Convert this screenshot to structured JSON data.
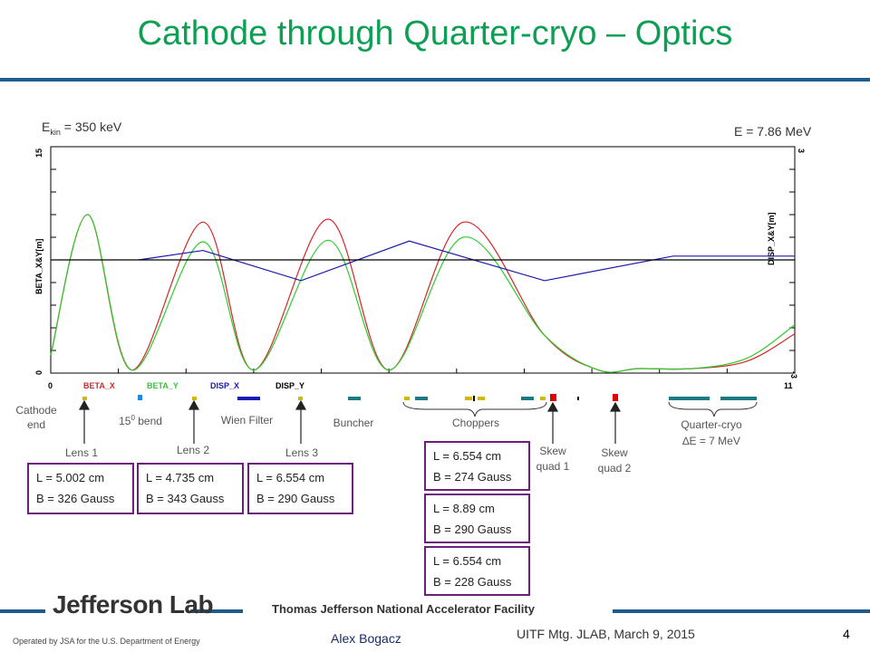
{
  "slide": {
    "title": "Cathode through Quarter-cryo – Optics",
    "ekin_label": "E",
    "ekin_sub": "kin",
    "ekin_value": " = 350 keV",
    "e_final": "E = 7.86 MeV",
    "page_number": "4"
  },
  "annotations": {
    "cathode": [
      "Cathode",
      "end"
    ],
    "bend_prefix": "15",
    "bend_sup": "0",
    "bend_suffix": " bend",
    "wien": "Wien Filter",
    "buncher": "Buncher",
    "choppers": "Choppers",
    "skew1": [
      "Skew",
      "quad 1"
    ],
    "skew2": [
      "Skew",
      "quad 2"
    ],
    "quarter_cryo": [
      "Quarter-cryo",
      "∆E = 7 MeV"
    ],
    "lens1": "Lens 1",
    "lens2": "Lens 2",
    "lens3": "Lens 3"
  },
  "boxes": {
    "lens1": [
      "L = 5.002 cm",
      "B = 326 Gauss"
    ],
    "lens2": [
      "L = 4.735 cm",
      "B = 343 Gauss"
    ],
    "lens3": [
      "L = 6.554 cm",
      "B = 290 Gauss"
    ],
    "chop1": [
      "L = 6.554 cm",
      "B = 274 Gauss"
    ],
    "chop2": [
      "L = 8.89 cm",
      "B = 290 Gauss"
    ],
    "chop3": [
      "L = 6.554 cm",
      "B = 228 Gauss"
    ]
  },
  "footer": {
    "logo": "Jefferson Lab",
    "facility": "Thomas Jefferson National Accelerator Facility",
    "operated": "Operated by JSA for the U.S. Department of Energy",
    "author": "Alex Bogacz",
    "meeting": "UITF Mtg. JLAB, March 9, 2015"
  },
  "chart_data": {
    "type": "line",
    "ylabel_left": "BETA_X&Y[m]",
    "ylabel_right": "DISP_X&Y[m]",
    "xlim": [
      0,
      11
    ],
    "ylim_left": [
      0,
      15
    ],
    "ylim_right": [
      -3,
      3
    ],
    "x_ticks": [
      "0",
      "11"
    ],
    "y_left_ticks": [
      "0",
      "15"
    ],
    "y_right_ticks": [
      "-3",
      "3"
    ],
    "legend": [
      "BETA_X",
      "BETA_Y",
      "DISP_X",
      "DISP_Y"
    ],
    "colors": {
      "BETA_X": "#d62728",
      "BETA_Y": "#2ecc2e",
      "DISP_X": "#1a1aa8",
      "DISP_Y": "#000000"
    },
    "series": [
      {
        "name": "BETA_X",
        "x": [
          0,
          0.55,
          1.2,
          2.25,
          3.0,
          4.1,
          5.0,
          6.1,
          7.3,
          8.1,
          8.7,
          9.5,
          10.3,
          11.0
        ],
        "y": [
          1.2,
          10.5,
          0.2,
          10.0,
          0.2,
          10.2,
          0.2,
          10.0,
          2.5,
          0.2,
          0.3,
          0.3,
          0.8,
          2.6
        ]
      },
      {
        "name": "BETA_Y",
        "x": [
          0,
          0.55,
          1.2,
          2.25,
          3.0,
          4.1,
          5.0,
          6.1,
          7.3,
          8.1,
          8.7,
          9.5,
          10.3,
          11.0
        ],
        "y": [
          1.2,
          10.5,
          0.2,
          8.7,
          0.2,
          8.8,
          0.2,
          9.0,
          2.5,
          0.2,
          0.3,
          0.3,
          1.0,
          3.2
        ]
      },
      {
        "name": "DISP_X",
        "x": [
          1.3,
          2.25,
          3.7,
          5.3,
          7.3,
          9.2,
          11.0
        ],
        "y": [
          0.0,
          0.25,
          -0.55,
          0.5,
          -0.55,
          0.1,
          0.1
        ]
      },
      {
        "name": "DISP_Y",
        "x": [
          0,
          11.0
        ],
        "y": [
          0,
          0
        ]
      }
    ]
  }
}
